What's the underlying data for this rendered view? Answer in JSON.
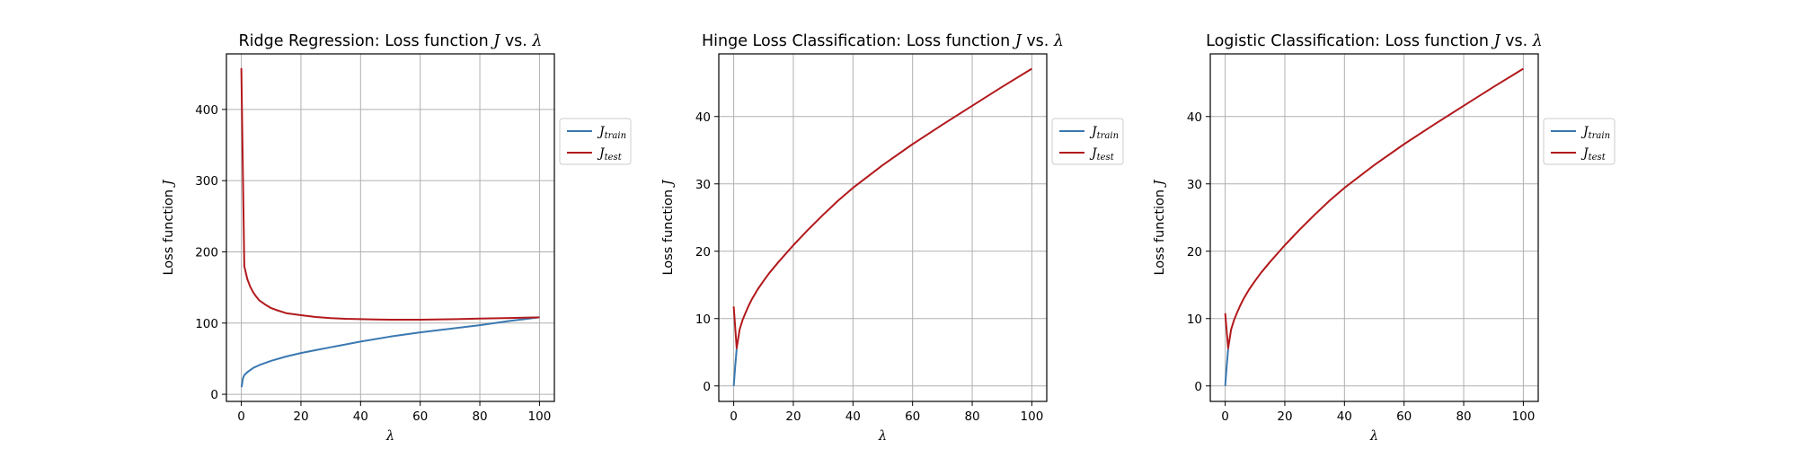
{
  "chart_data": [
    {
      "type": "line",
      "title": "Ridge Regression: Loss function J vs. λ",
      "xlabel": "λ",
      "ylabel": "Loss function J",
      "xlim": [
        -5,
        105
      ],
      "ylim": [
        -10,
        478
      ],
      "xticks": [
        0,
        20,
        40,
        60,
        80,
        100
      ],
      "yticks": [
        0,
        100,
        200,
        300,
        400
      ],
      "grid": true,
      "legend": "outside-right",
      "series": [
        {
          "name": "J_train",
          "color": "#3a78b0",
          "x": [
            0.1,
            0.5,
            1,
            2,
            4,
            6,
            8,
            10,
            15,
            20,
            25,
            30,
            40,
            50,
            60,
            70,
            80,
            90,
            100
          ],
          "values": [
            10,
            22,
            27,
            31,
            37,
            41,
            44,
            47,
            53,
            58,
            62,
            66,
            74,
            81,
            87,
            92,
            97,
            103,
            108
          ]
        },
        {
          "name": "J_test",
          "color": "#b2191c",
          "x": [
            0,
            1,
            2,
            3,
            4,
            5,
            6,
            8,
            10,
            12,
            15,
            20,
            25,
            30,
            35,
            40,
            45,
            50,
            55,
            60,
            65,
            70,
            80,
            90,
            100
          ],
          "values": [
            458,
            180,
            162,
            151,
            143,
            137,
            132,
            126,
            121,
            118,
            114,
            111,
            108.5,
            107,
            106,
            105.5,
            105,
            104.8,
            104.7,
            104.8,
            105,
            105.4,
            106.3,
            107.2,
            108
          ]
        }
      ]
    },
    {
      "type": "line",
      "title": "Hinge Loss Classification: Loss function J vs. λ",
      "xlabel": "λ",
      "ylabel": "Loss function J",
      "xlim": [
        -5,
        105
      ],
      "ylim": [
        -2.3,
        49.3
      ],
      "xticks": [
        0,
        20,
        40,
        60,
        80,
        100
      ],
      "yticks": [
        0,
        10,
        20,
        30,
        40
      ],
      "grid": true,
      "legend": "outside-right",
      "series": [
        {
          "name": "J_train",
          "color": "#3a78b0",
          "x": [
            0,
            0.5,
            1
          ],
          "values": [
            0,
            3,
            5.5
          ]
        },
        {
          "name": "J_test",
          "color": "#b2191c",
          "x": [
            0,
            1,
            2,
            3,
            4,
            5,
            6,
            8,
            10,
            12,
            15,
            20,
            25,
            30,
            35,
            40,
            50,
            60,
            70,
            80,
            90,
            100
          ],
          "values": [
            11.8,
            5.6,
            8.4,
            9.8,
            10.9,
            11.9,
            12.8,
            14.3,
            15.6,
            16.8,
            18.4,
            20.9,
            23.2,
            25.4,
            27.5,
            29.4,
            32.8,
            35.9,
            38.8,
            41.6,
            44.4,
            47.1
          ]
        }
      ]
    },
    {
      "type": "line",
      "title": "Logistic Classification: Loss function J vs. λ",
      "xlabel": "λ",
      "ylabel": "Loss function J",
      "xlim": [
        -5,
        105
      ],
      "ylim": [
        -2.3,
        49.3
      ],
      "xticks": [
        0,
        20,
        40,
        60,
        80,
        100
      ],
      "yticks": [
        0,
        10,
        20,
        30,
        40
      ],
      "grid": true,
      "legend": "outside-right",
      "series": [
        {
          "name": "J_train",
          "color": "#3a78b0",
          "x": [
            0,
            0.5,
            1
          ],
          "values": [
            0,
            3,
            5.5
          ]
        },
        {
          "name": "J_test",
          "color": "#b2191c",
          "x": [
            0,
            1,
            2,
            3,
            4,
            5,
            6,
            8,
            10,
            12,
            15,
            20,
            25,
            30,
            35,
            40,
            50,
            60,
            70,
            80,
            90,
            100
          ],
          "values": [
            10.8,
            5.6,
            8.4,
            9.8,
            10.9,
            11.9,
            12.8,
            14.3,
            15.6,
            16.8,
            18.4,
            20.9,
            23.2,
            25.4,
            27.5,
            29.4,
            32.8,
            35.9,
            38.8,
            41.6,
            44.4,
            47.1
          ]
        }
      ]
    }
  ]
}
